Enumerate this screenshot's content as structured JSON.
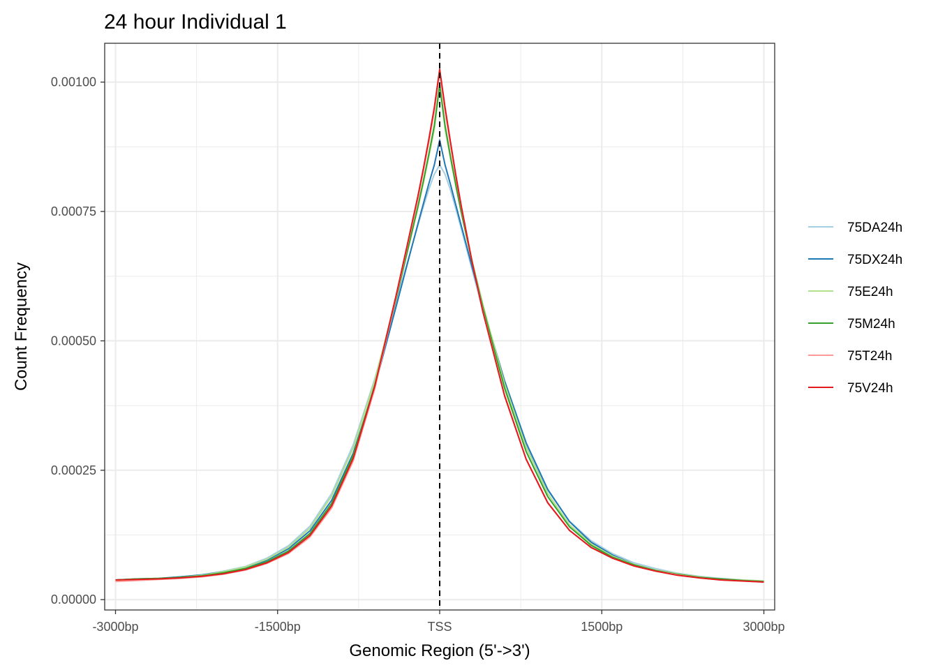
{
  "chart_data": {
    "type": "line",
    "title": "24 hour Individual 1",
    "xlabel": "Genomic Region (5'->3')",
    "ylabel": "Count Frequency",
    "xlim": [
      -3100,
      3100
    ],
    "ylim": [
      -2e-05,
      0.001075
    ],
    "x_ticks": [
      -3000,
      -1500,
      0,
      1500,
      3000
    ],
    "x_tick_labels": [
      "-3000bp",
      "-1500bp",
      "TSS",
      "1500bp",
      "3000bp"
    ],
    "y_ticks": [
      0,
      0.00025,
      0.0005,
      0.00075,
      0.001
    ],
    "y_tick_labels": [
      "0.00000",
      "0.00025",
      "0.00050",
      "0.00075",
      "0.00100"
    ],
    "grid": true,
    "vline": {
      "x": 0,
      "style": "dashed",
      "color": "#000000"
    },
    "legend_position": "right",
    "x": [
      -3000,
      -2800,
      -2600,
      -2400,
      -2200,
      -2000,
      -1800,
      -1600,
      -1400,
      -1200,
      -1000,
      -800,
      -600,
      -400,
      -300,
      -200,
      -150,
      -100,
      -50,
      0,
      50,
      100,
      150,
      200,
      300,
      400,
      600,
      800,
      1000,
      1200,
      1400,
      1600,
      1800,
      2000,
      2200,
      2400,
      2600,
      2800,
      3000
    ],
    "series": [
      {
        "name": "75DA24h",
        "color": "#a6cee3",
        "values": [
          3.8e-05,
          4e-05,
          4.1e-05,
          4.4e-05,
          4.8e-05,
          5.5e-05,
          6.4e-05,
          8e-05,
          0.000104,
          0.000142,
          0.000205,
          0.000299,
          0.000427,
          0.000578,
          0.000651,
          0.000724,
          0.00076,
          0.000793,
          0.000822,
          0.00084,
          0.000822,
          0.000791,
          0.000755,
          0.000716,
          0.000637,
          0.000558,
          0.000415,
          0.000297,
          0.000211,
          0.000152,
          0.000114,
          8.9e-05,
          7.1e-05,
          6e-05,
          5.1e-05,
          4.5e-05,
          4.1e-05,
          3.8e-05,
          3.6e-05
        ]
      },
      {
        "name": "75DX24h",
        "color": "#1f78b4",
        "values": [
          3.8e-05,
          4e-05,
          4.1e-05,
          4.4e-05,
          4.8e-05,
          5.4e-05,
          6.2e-05,
          7.6e-05,
          9.8e-05,
          0.000133,
          0.000192,
          0.000283,
          0.000412,
          0.000569,
          0.000648,
          0.000727,
          0.000766,
          0.000804,
          0.00084,
          0.000888,
          0.00084,
          0.000802,
          0.000762,
          0.000722,
          0.000643,
          0.000565,
          0.000423,
          0.000303,
          0.000213,
          0.000151,
          0.000111,
          8.6e-05,
          6.8e-05,
          5.7e-05,
          4.9e-05,
          4.3e-05,
          3.9e-05,
          3.7e-05,
          3.5e-05
        ]
      },
      {
        "name": "75E24h",
        "color": "#b2df8a",
        "values": [
          3.7e-05,
          3.9e-05,
          4e-05,
          4.3e-05,
          4.7e-05,
          5.4e-05,
          6.3e-05,
          7.8e-05,
          0.000101,
          0.000138,
          0.0002,
          0.000293,
          0.000424,
          0.000586,
          0.000671,
          0.000758,
          0.000806,
          0.000856,
          0.000909,
          0.000992,
          0.000909,
          0.000852,
          0.000798,
          0.000748,
          0.000655,
          0.00057,
          0.000417,
          0.000294,
          0.000205,
          0.000145,
          0.000108,
          8.4e-05,
          6.8e-05,
          5.7e-05,
          5e-05,
          4.4e-05,
          4e-05,
          3.8e-05,
          3.6e-05
        ]
      },
      {
        "name": "75M24h",
        "color": "#33a02c",
        "values": [
          3.8e-05,
          4e-05,
          4.1e-05,
          4.3e-05,
          4.6e-05,
          5.2e-05,
          6e-05,
          7.3e-05,
          9.4e-05,
          0.000128,
          0.000186,
          0.000279,
          0.000415,
          0.000584,
          0.000672,
          0.000761,
          0.00081,
          0.000861,
          0.000916,
          0.000995,
          0.000916,
          0.000856,
          0.000801,
          0.000748,
          0.000652,
          0.000565,
          0.000409,
          0.000286,
          0.000199,
          0.000141,
          0.000105,
          8.2e-05,
          6.7e-05,
          5.6e-05,
          4.9e-05,
          4.3e-05,
          4e-05,
          3.7e-05,
          3.5e-05
        ]
      },
      {
        "name": "75T24h",
        "color": "#fb9a99",
        "values": [
          3.5e-05,
          3.7e-05,
          3.9e-05,
          4.1e-05,
          4.4e-05,
          4.9e-05,
          5.7e-05,
          7e-05,
          8.9e-05,
          0.000121,
          0.000177,
          0.000268,
          0.000408,
          0.000588,
          0.000682,
          0.000776,
          0.000829,
          0.000884,
          0.000944,
          0.00102,
          0.000944,
          0.000878,
          0.000816,
          0.000758,
          0.000652,
          0.000558,
          0.000396,
          0.000272,
          0.000188,
          0.000134,
          0.000101,
          8e-05,
          6.5e-05,
          5.5e-05,
          4.8e-05,
          4.2e-05,
          3.8e-05,
          3.6e-05,
          3.4e-05
        ]
      },
      {
        "name": "75V24h",
        "color": "#e31a1c",
        "values": [
          3.8e-05,
          3.9e-05,
          4e-05,
          4.2e-05,
          4.5e-05,
          5e-05,
          5.8e-05,
          7.1e-05,
          9.1e-05,
          0.000124,
          0.000181,
          0.000273,
          0.000413,
          0.000591,
          0.000685,
          0.000781,
          0.000834,
          0.00089,
          0.000951,
          0.001025,
          0.000951,
          0.000884,
          0.00082,
          0.00076,
          0.000652,
          0.000556,
          0.000394,
          0.000271,
          0.000187,
          0.000134,
          0.000101,
          8e-05,
          6.5e-05,
          5.5e-05,
          4.7e-05,
          4.2e-05,
          3.8e-05,
          3.6e-05,
          3.4e-05
        ]
      }
    ]
  }
}
